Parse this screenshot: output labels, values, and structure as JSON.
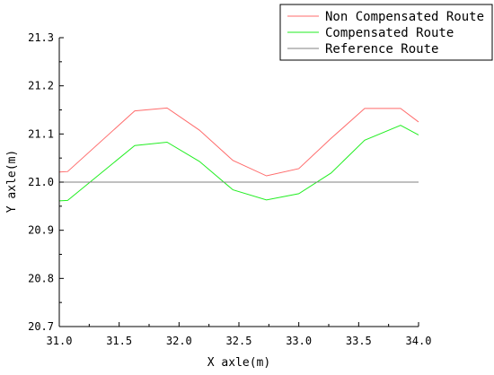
{
  "chart_data": {
    "type": "line",
    "xlabel": "X axle(m)",
    "ylabel": "Y axle(m)",
    "xlim": [
      31.0,
      34.0
    ],
    "ylim": [
      20.7,
      21.3
    ],
    "xticks": [
      "31.0",
      "31.5",
      "32.0",
      "32.5",
      "33.0",
      "33.5",
      "34.0"
    ],
    "yticks": [
      "20.7",
      "20.8",
      "20.9",
      "21.0",
      "21.1",
      "21.2",
      "21.3"
    ],
    "grid": false,
    "legend_position": "top-right",
    "series": [
      {
        "name": "Non Compensated Route",
        "color": "#ff6b6b",
        "x": [
          31.0,
          31.07,
          31.63,
          31.9,
          32.17,
          32.45,
          32.73,
          33.0,
          33.27,
          33.55,
          33.85,
          34.0
        ],
        "y": [
          21.021,
          21.022,
          21.148,
          21.154,
          21.108,
          21.045,
          21.013,
          21.028,
          21.091,
          21.153,
          21.153,
          21.125
        ]
      },
      {
        "name": "Compensated Route",
        "color": "#22ee22",
        "x": [
          31.0,
          31.07,
          31.63,
          31.9,
          32.17,
          32.45,
          32.73,
          33.0,
          33.27,
          33.55,
          33.85,
          34.0
        ],
        "y": [
          20.961,
          20.962,
          21.076,
          21.083,
          21.043,
          20.984,
          20.963,
          20.976,
          21.019,
          21.087,
          21.118,
          21.098
        ]
      },
      {
        "name": "Reference Route",
        "color": "#808080",
        "x": [
          31.0,
          34.0
        ],
        "y": [
          21.0,
          21.0
        ]
      }
    ]
  }
}
